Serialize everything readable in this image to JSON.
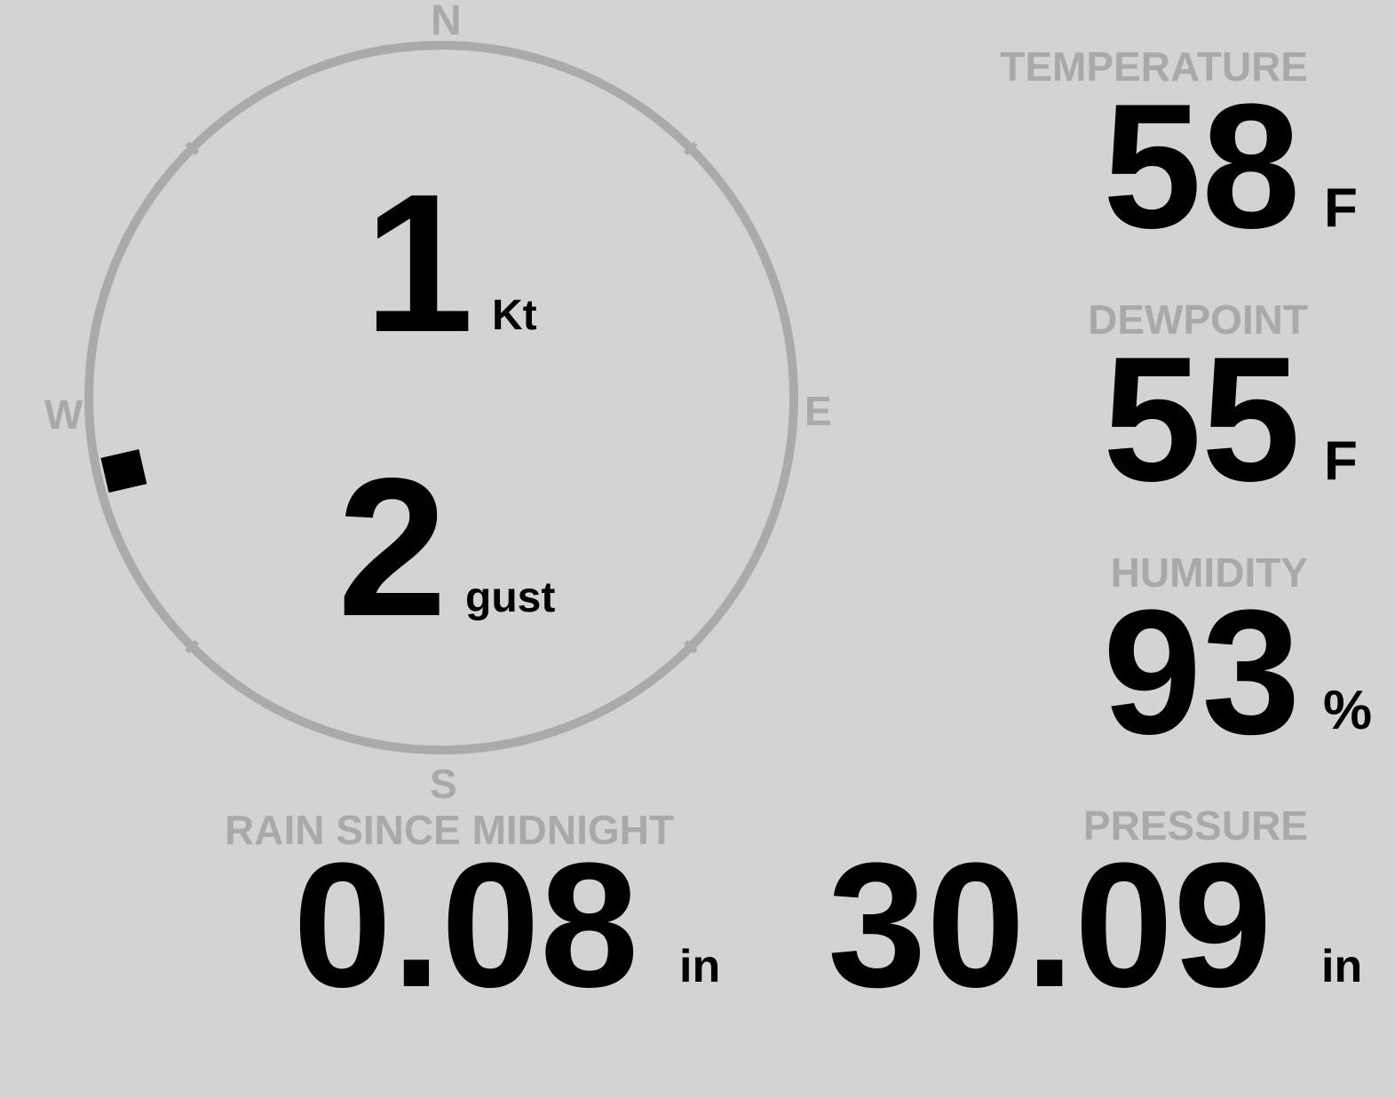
{
  "colors": {
    "background": "#d3d3d3",
    "ring": "#aaaaaa",
    "label": "#a9a9a9",
    "value": "#000000"
  },
  "wind": {
    "compass": {
      "n": "N",
      "e": "E",
      "s": "S",
      "w": "W"
    },
    "direction_deg": 257,
    "speed": "1",
    "speed_unit": "Kt",
    "gust": "2",
    "gust_unit": "gust"
  },
  "temperature": {
    "label": "TEMPERATURE",
    "value": "58",
    "unit": "F"
  },
  "dewpoint": {
    "label": "DEWPOINT",
    "value": "55",
    "unit": "F"
  },
  "humidity": {
    "label": "HUMIDITY",
    "value": "93",
    "unit": "%"
  },
  "rain": {
    "label": "RAIN SINCE MIDNIGHT",
    "value": "0.08",
    "unit": "in"
  },
  "pressure": {
    "label": "PRESSURE",
    "value": "30.09",
    "unit": "in"
  }
}
